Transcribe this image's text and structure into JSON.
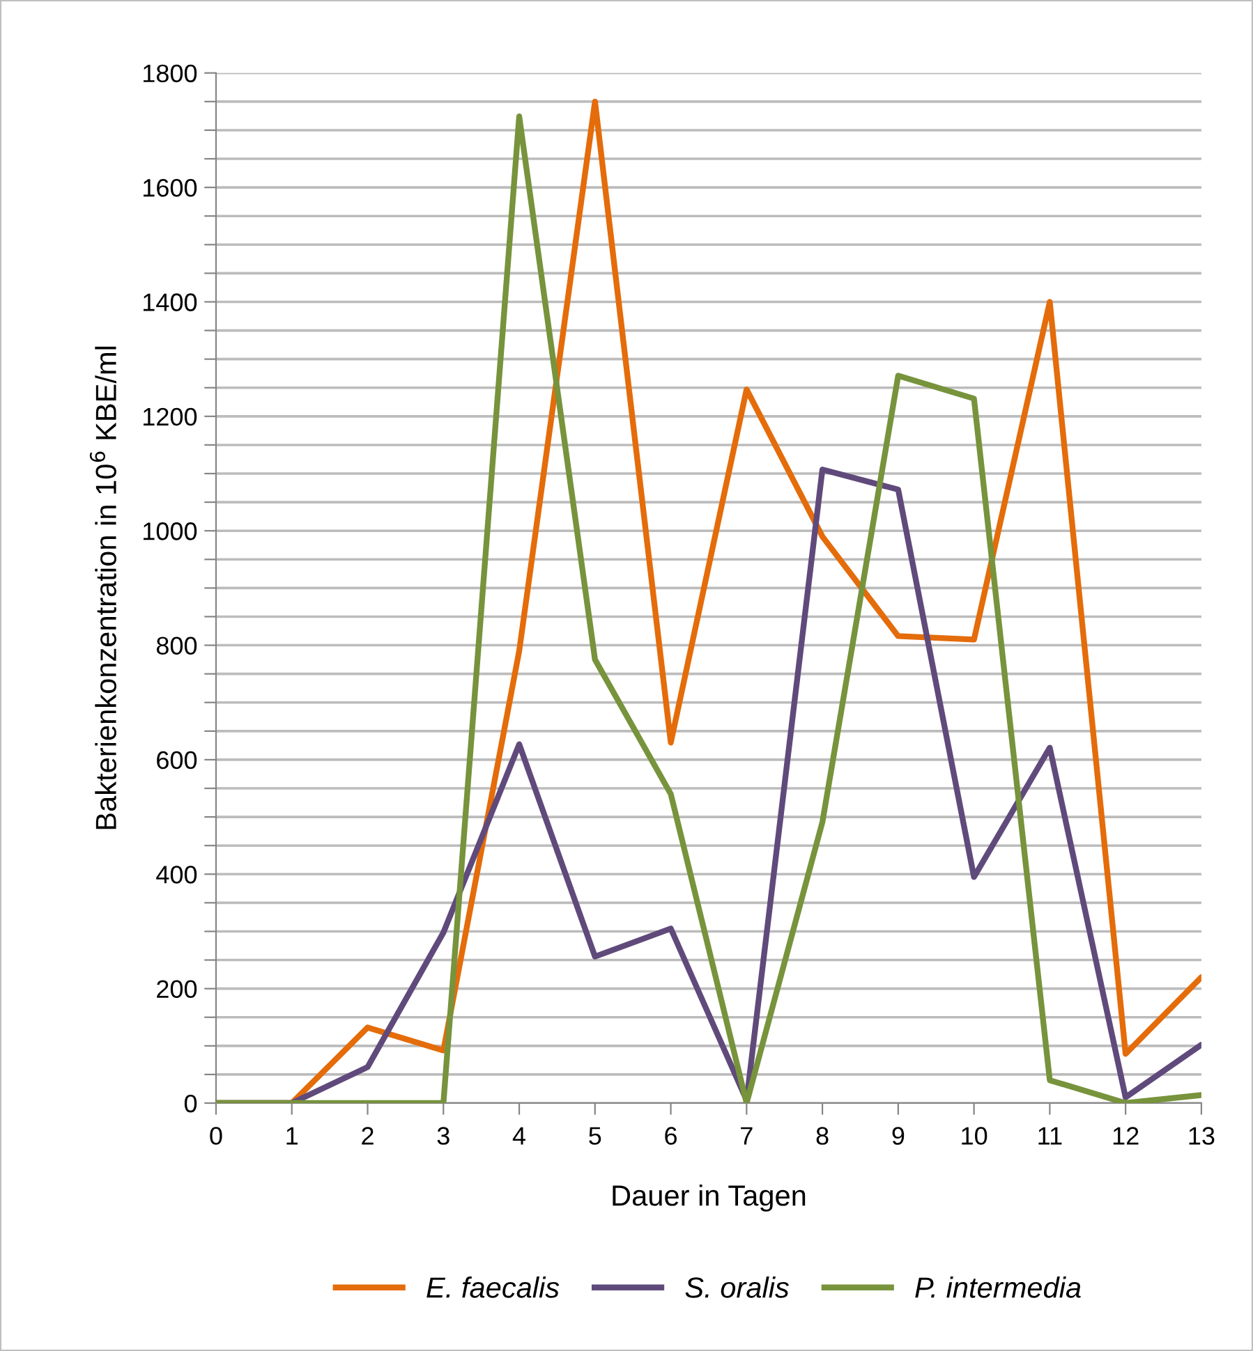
{
  "chart_data": {
    "type": "line",
    "xlabel": "Dauer in Tagen",
    "ylabel": "Bakterienkonzentration in 10$^{6}$ KBE/ml",
    "x": [
      0,
      1,
      2,
      3,
      4,
      5,
      6,
      7,
      8,
      9,
      10,
      11,
      12,
      13
    ],
    "series": [
      {
        "name": "E. faecalis",
        "color": "#e46c0a",
        "values": [
          0,
          0,
          132,
          92,
          790,
          1750,
          630,
          1247,
          990,
          816,
          810,
          1400,
          86,
          220
        ]
      },
      {
        "name": "S. oralis",
        "color": "#604a7b",
        "values": [
          0,
          0,
          63,
          298,
          627,
          256,
          305,
          5,
          1107,
          1072,
          395,
          621,
          10,
          102
        ]
      },
      {
        "name": "P. intermedia",
        "color": "#77933c",
        "values": [
          0,
          0,
          0,
          0,
          1724,
          775,
          540,
          0,
          491,
          1271,
          1231,
          40,
          0,
          14
        ]
      }
    ],
    "xlim": [
      0,
      13
    ],
    "xticks": [
      0,
      1,
      2,
      3,
      4,
      5,
      6,
      7,
      8,
      9,
      10,
      11,
      12,
      13
    ],
    "ylim": [
      0,
      1800
    ],
    "yticks": [
      0,
      {
        "value": 50,
        "label": null
      },
      {
        "value": 100,
        "label": null
      },
      {
        "value": 150,
        "label": null
      },
      200,
      {
        "value": 250,
        "label": null
      },
      {
        "value": 300,
        "label": null
      },
      {
        "value": 350,
        "label": null
      },
      400,
      {
        "value": 450,
        "label": null
      },
      {
        "value": 500,
        "label": null
      },
      {
        "value": 550,
        "label": null
      },
      600,
      {
        "value": 650,
        "label": null
      },
      {
        "value": 700,
        "label": null
      },
      {
        "value": 750,
        "label": null
      },
      800,
      {
        "value": 850,
        "label": null
      },
      {
        "value": 900,
        "label": null
      },
      {
        "value": 950,
        "label": null
      },
      1000,
      {
        "value": 1050,
        "label": null
      },
      {
        "value": 1100,
        "label": null
      },
      {
        "value": 1150,
        "label": null
      },
      1200,
      {
        "value": 1250,
        "label": null
      },
      {
        "value": 1300,
        "label": null
      },
      {
        "value": 1350,
        "label": null
      },
      1400,
      {
        "value": 1450,
        "label": null
      },
      {
        "value": 1500,
        "label": null
      },
      {
        "value": 1550,
        "label": null
      },
      1600,
      {
        "value": 1650,
        "label": null
      },
      {
        "value": 1700,
        "label": null
      },
      {
        "value": 1750,
        "label": null
      },
      1800
    ],
    "grid": "y",
    "legend": "bottom",
    "marker": "none",
    "line_style": "solid"
  }
}
